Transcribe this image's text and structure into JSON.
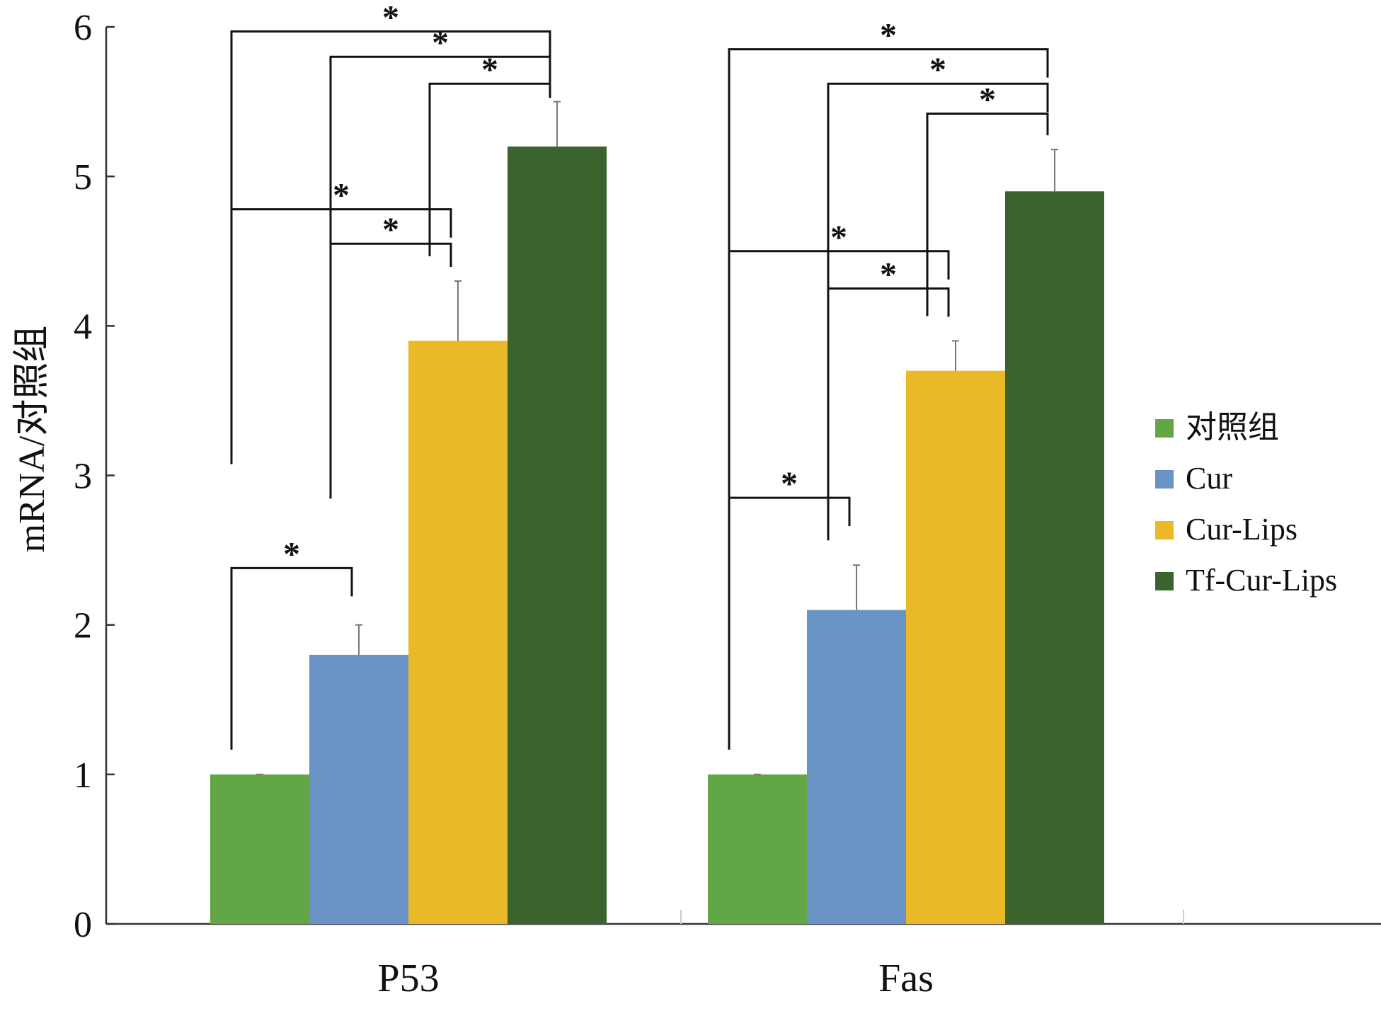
{
  "chart_data": {
    "type": "bar",
    "title": "",
    "xlabel": "",
    "ylabel": "mRNA/对照组",
    "ylim": [
      0,
      6
    ],
    "yticks": [
      0,
      1,
      2,
      3,
      4,
      5,
      6
    ],
    "categories": [
      "P53",
      "Fas"
    ],
    "legend_position": "right",
    "grid": false,
    "series": [
      {
        "name": "对照组",
        "color": "#62a646",
        "values": [
          1.0,
          1.0
        ],
        "errors": [
          0.0,
          0.0
        ]
      },
      {
        "name": "Cur",
        "color": "#6893c4",
        "values": [
          1.8,
          2.1
        ],
        "errors": [
          0.2,
          0.3
        ]
      },
      {
        "name": "Cur-Lips",
        "color": "#e9b927",
        "values": [
          3.9,
          3.7
        ],
        "errors": [
          0.4,
          0.2
        ]
      },
      {
        "name": "Tf-Cur-Lips",
        "color": "#3b632e",
        "values": [
          5.2,
          4.9
        ],
        "errors": [
          0.3,
          0.28
        ]
      }
    ],
    "significance": {
      "symbol": "*",
      "comparisons": [
        {
          "category": 0,
          "from": 0,
          "to": 1,
          "y": 2.38
        },
        {
          "category": 0,
          "from": 1,
          "to": 2,
          "y": 4.55
        },
        {
          "category": 0,
          "from": 0,
          "to": 2,
          "y": 4.78
        },
        {
          "category": 0,
          "from": 2,
          "to": 3,
          "y": 5.62
        },
        {
          "category": 0,
          "from": 1,
          "to": 3,
          "y": 5.8
        },
        {
          "category": 0,
          "from": 0,
          "to": 3,
          "y": 5.97
        },
        {
          "category": 1,
          "from": 0,
          "to": 1,
          "y": 2.85
        },
        {
          "category": 1,
          "from": 1,
          "to": 2,
          "y": 4.25
        },
        {
          "category": 1,
          "from": 0,
          "to": 2,
          "y": 4.5
        },
        {
          "category": 1,
          "from": 2,
          "to": 3,
          "y": 5.42
        },
        {
          "category": 1,
          "from": 1,
          "to": 3,
          "y": 5.62
        },
        {
          "category": 1,
          "from": 0,
          "to": 3,
          "y": 5.85
        }
      ]
    }
  }
}
